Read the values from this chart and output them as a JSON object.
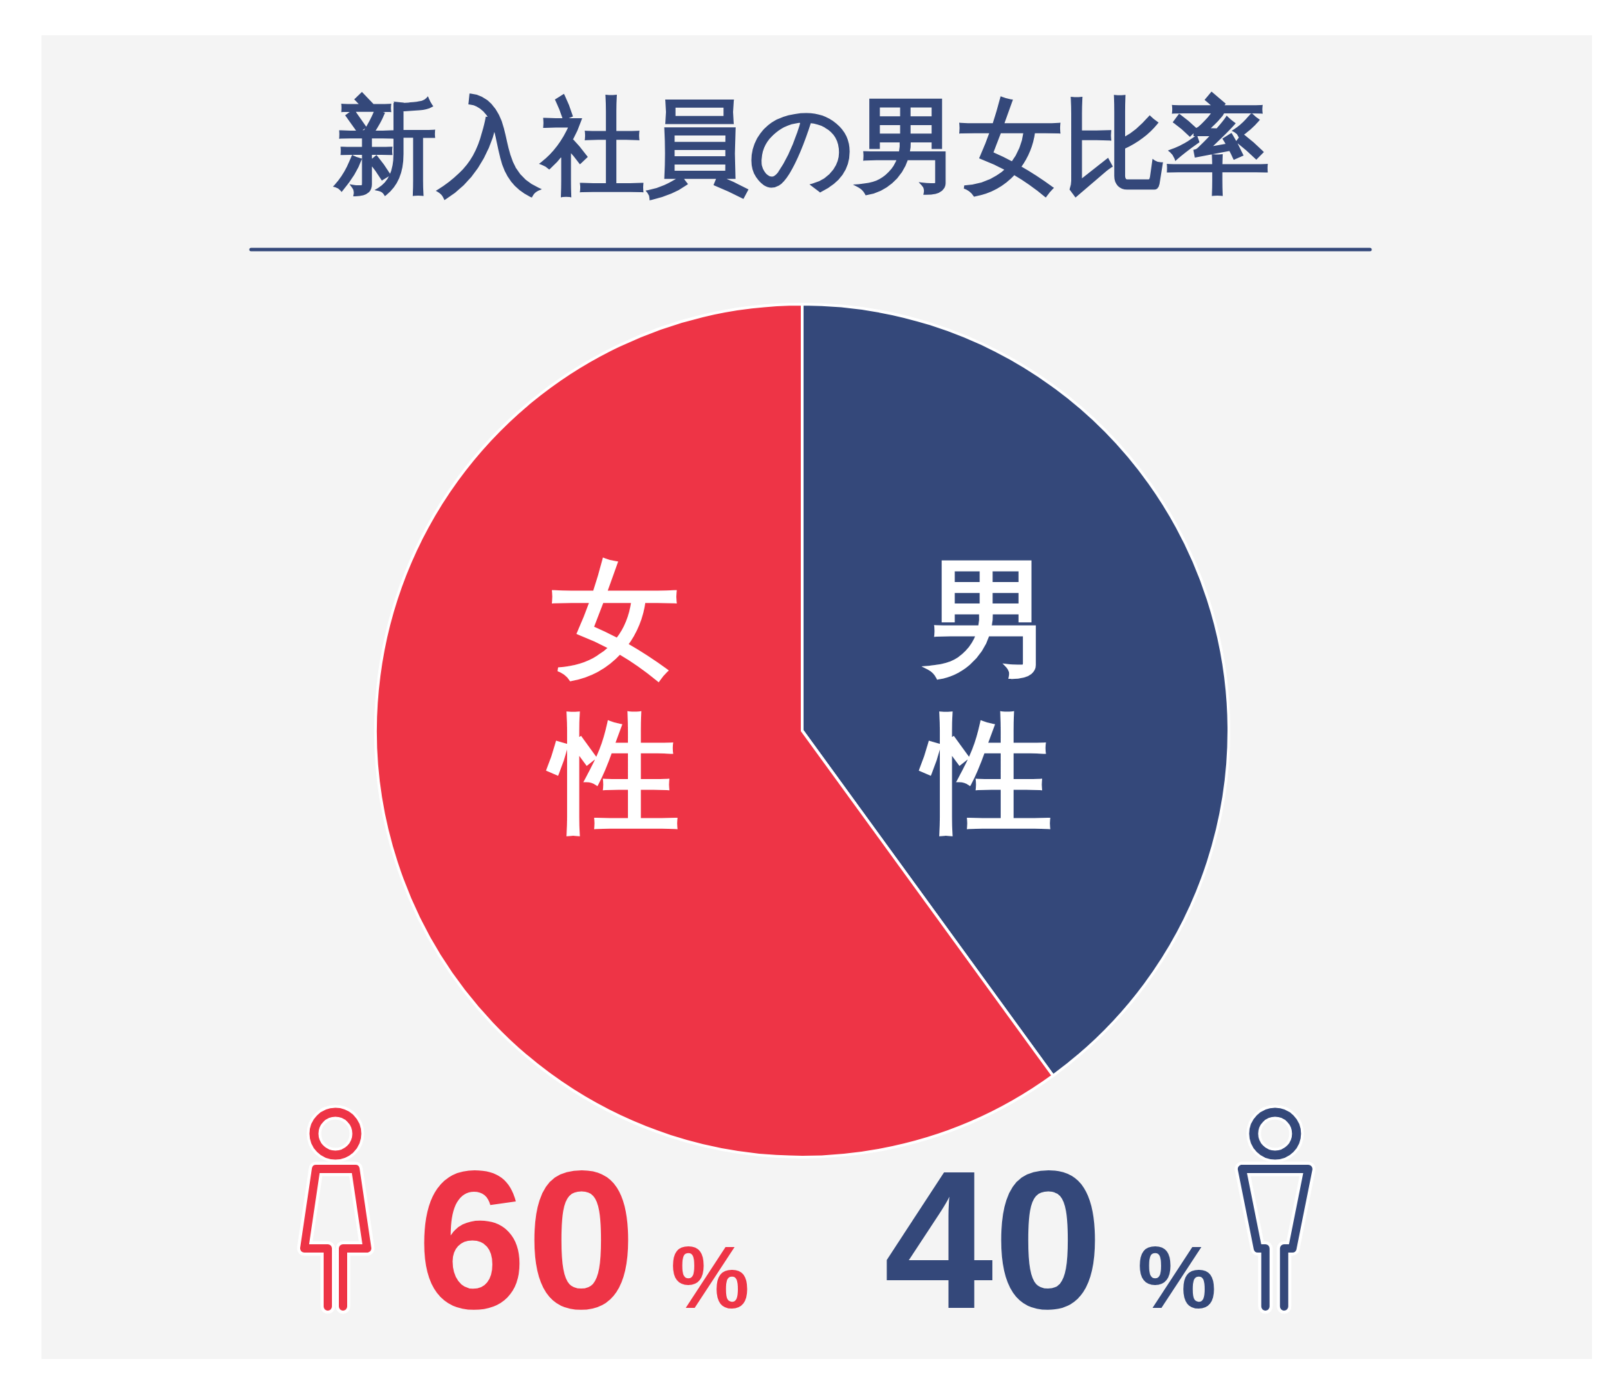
{
  "chart_data": {
    "type": "pie",
    "title": "新入社員の男女比率",
    "categories": [
      "男性",
      "女性"
    ],
    "values": [
      40,
      60
    ],
    "colors": [
      "#34487a",
      "#ee3446"
    ],
    "value_labels": [
      "40%",
      "60%"
    ]
  }
}
